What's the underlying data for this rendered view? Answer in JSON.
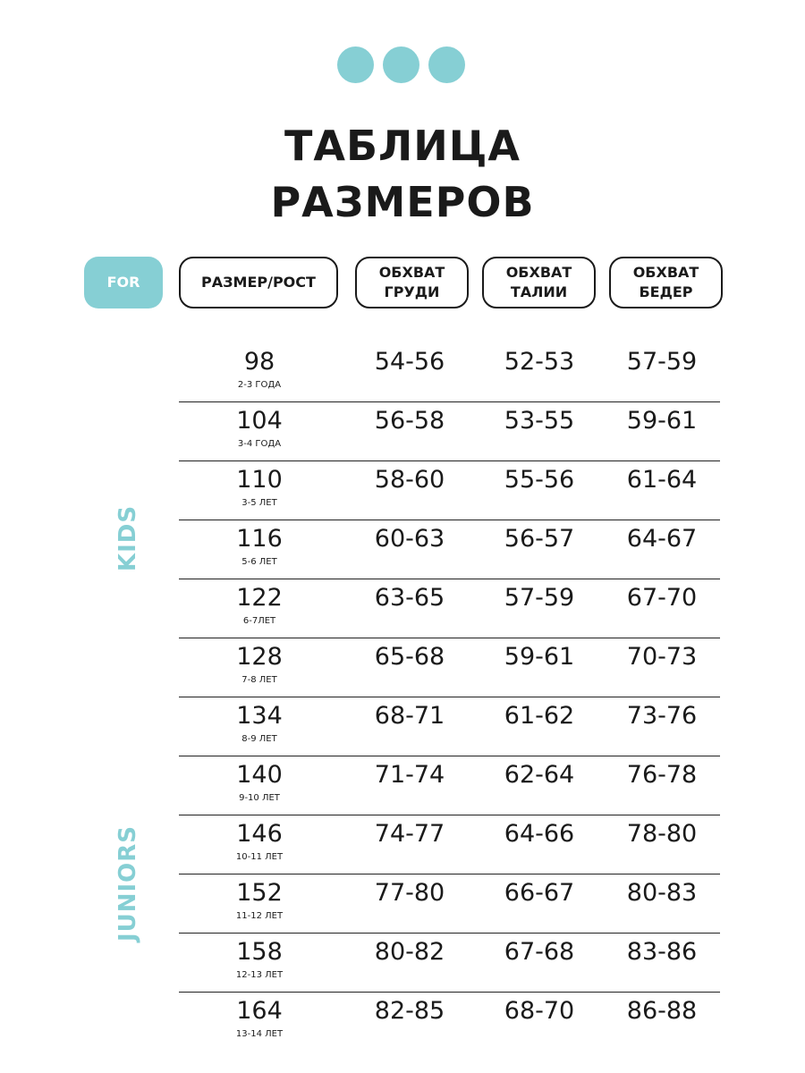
{
  "title": [
    "ТАБЛИЦА",
    "РАЗМЕРОВ"
  ],
  "accent_color": "#86cfd4",
  "headers": {
    "for": "FOR",
    "size": "РАЗМЕР/РОСТ",
    "chest": [
      "ОБХВАТ",
      "ГРУДИ"
    ],
    "waist": [
      "ОБХВАТ",
      "ТАЛИИ"
    ],
    "hips": [
      "ОБХВАТ",
      "БЕДЕР"
    ]
  },
  "groups": {
    "kids": "KIDS",
    "juniors": "JUNIORS"
  },
  "rows": [
    {
      "size": "98",
      "age": "2-3 ГОДА",
      "chest": "54-56",
      "waist": "52-53",
      "hips": "57-59"
    },
    {
      "size": "104",
      "age": "3-4 ГОДА",
      "chest": "56-58",
      "waist": "53-55",
      "hips": "59-61"
    },
    {
      "size": "110",
      "age": "3-5 ЛЕТ",
      "chest": "58-60",
      "waist": "55-56",
      "hips": "61-64"
    },
    {
      "size": "116",
      "age": "5-6 ЛЕТ",
      "chest": "60-63",
      "waist": "56-57",
      "hips": "64-67"
    },
    {
      "size": "122",
      "age": "6-7ЛЕТ",
      "chest": "63-65",
      "waist": "57-59",
      "hips": "67-70"
    },
    {
      "size": "128",
      "age": "7-8 ЛЕТ",
      "chest": "65-68",
      "waist": "59-61",
      "hips": "70-73"
    },
    {
      "size": "134",
      "age": "8-9 ЛЕТ",
      "chest": "68-71",
      "waist": "61-62",
      "hips": "73-76"
    },
    {
      "size": "140",
      "age": "9-10 ЛЕТ",
      "chest": "71-74",
      "waist": "62-64",
      "hips": "76-78"
    },
    {
      "size": "146",
      "age": "10-11 ЛЕТ",
      "chest": "74-77",
      "waist": "64-66",
      "hips": "78-80"
    },
    {
      "size": "152",
      "age": "11-12 ЛЕТ",
      "chest": "77-80",
      "waist": "66-67",
      "hips": "80-83"
    },
    {
      "size": "158",
      "age": "12-13 ЛЕТ",
      "chest": "80-82",
      "waist": "67-68",
      "hips": "83-86"
    },
    {
      "size": "164",
      "age": "13-14 ЛЕТ",
      "chest": "82-85",
      "waist": "68-70",
      "hips": "86-88"
    }
  ]
}
